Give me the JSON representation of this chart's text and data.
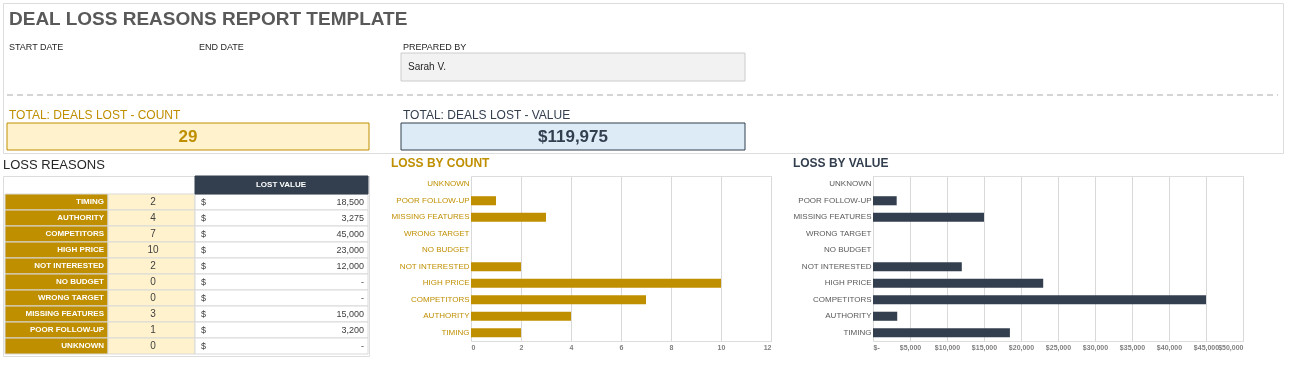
{
  "chart_data": [
    {
      "type": "other",
      "title": "DEAL LOSS REASONS REPORT TEMPLATE",
      "annotations": [
        "START DATE",
        "END DATE",
        "PREPARED BY",
        "Sarah V.",
        "TOTAL: DEALS LOST - COUNT",
        "29",
        "TOTAL: DEALS LOST - VALUE",
        "$119,975"
      ]
    },
    {
      "type": "other",
      "title": "LOSS REASONS",
      "categories": [
        "TIMING",
        "AUTHORITY",
        "COMPETITORS",
        "HIGH PRICE",
        "NOT INTERESTED",
        "NO BUDGET",
        "WRONG TARGET",
        "MISSING FEATURES",
        "POOR FOLLOW-UP",
        "UNKNOWN"
      ],
      "series": [
        {
          "values": [
            2,
            4,
            7,
            10,
            2,
            0,
            0,
            3,
            1,
            0
          ]
        },
        {
          "name": "LOST VALUE",
          "values": [
            18500,
            3275,
            45000,
            23000,
            12000,
            null,
            null,
            15000,
            3200,
            null
          ],
          "value_labels": [
            "18,500",
            "3,275",
            "45,000",
            "23,000",
            "12,000",
            "-",
            "-",
            "15,000",
            "3,200",
            "-"
          ]
        }
      ],
      "data_labels": true,
      "annotations": [
        "$"
      ]
    },
    {
      "type": "bar",
      "orientation": "horizontal",
      "title": "LOSS BY COUNT",
      "categories": [
        "UNKNOWN",
        "POOR FOLLOW-UP",
        "MISSING FEATURES",
        "WRONG TARGET",
        "NO BUDGET",
        "NOT INTERESTED",
        "HIGH PRICE",
        "COMPETITORS",
        "AUTHORITY",
        "TIMING"
      ],
      "series": [
        {
          "color": "#bf8f00",
          "values": [
            0,
            1,
            3,
            0,
            0,
            2,
            10,
            7,
            4,
            2
          ]
        }
      ],
      "xlim": [
        0,
        12
      ],
      "xticks": [
        0,
        2,
        4,
        6,
        8,
        10,
        12
      ],
      "grid": "x"
    },
    {
      "type": "bar",
      "orientation": "horizontal",
      "title": "LOSS BY VALUE",
      "categories": [
        "UNKNOWN",
        "POOR FOLLOW-UP",
        "MISSING FEATURES",
        "WRONG TARGET",
        "NO BUDGET",
        "NOT INTERESTED",
        "HIGH PRICE",
        "COMPETITORS",
        "AUTHORITY",
        "TIMING"
      ],
      "series": [
        {
          "color": "#333f4f",
          "values": [
            0,
            3200,
            15000,
            0,
            0,
            12000,
            23000,
            45000,
            3275,
            18500
          ]
        }
      ],
      "xlim": [
        0,
        50000
      ],
      "xticks": [
        {
          "value": 0,
          "label": "$-"
        },
        {
          "value": 5000,
          "label": "$5,000"
        },
        {
          "value": 10000,
          "label": "$10,000"
        },
        {
          "value": 15000,
          "label": "$15,000"
        },
        {
          "value": 20000,
          "label": "$20,000"
        },
        {
          "value": 25000,
          "label": "$25,000"
        },
        {
          "value": 30000,
          "label": "$30,000"
        },
        {
          "value": 35000,
          "label": "$35,000"
        },
        {
          "value": 40000,
          "label": "$40,000"
        },
        {
          "value": 45000,
          "label": "$45,000"
        },
        {
          "value": 50000,
          "label": "$50,000"
        }
      ],
      "grid": "x"
    }
  ]
}
